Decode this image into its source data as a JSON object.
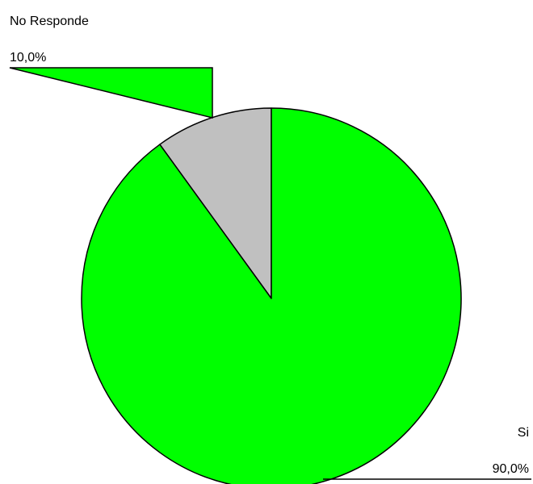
{
  "chart_data": {
    "type": "pie",
    "title": "",
    "slices": [
      {
        "label": "No Responde",
        "value": 10.0,
        "value_label": "10,0%",
        "color": "#c0c0c0"
      },
      {
        "label": "Si",
        "value": 90.0,
        "value_label": "90,0%",
        "color": "#00ff00"
      }
    ],
    "legend": "none",
    "start_angle": "12 o'clock",
    "direction": "clockwise"
  }
}
